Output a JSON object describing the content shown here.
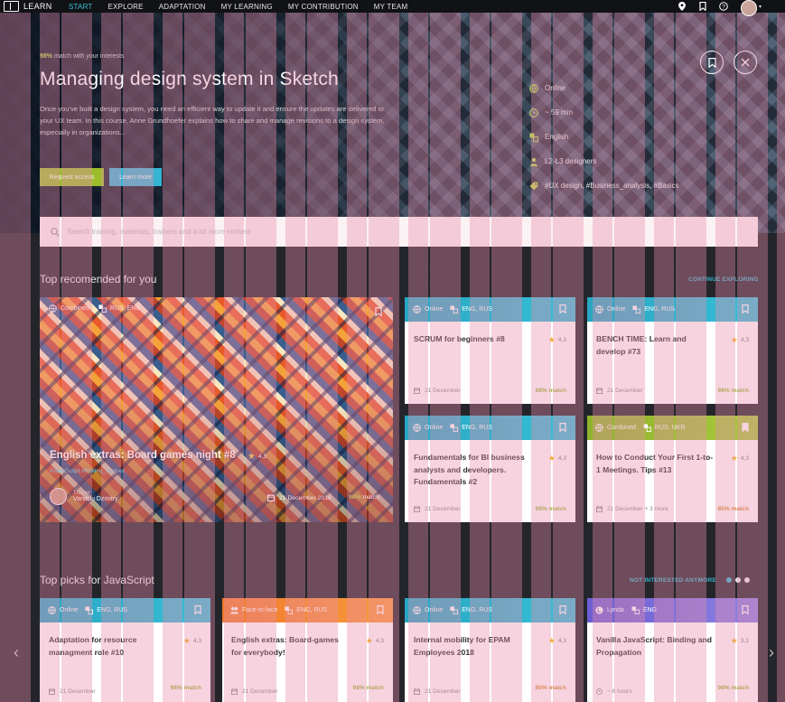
{
  "nav": {
    "logo_text": "LEARN",
    "items": [
      "START",
      "EXPLORE",
      "ADAPTATION",
      "MY LEARNING",
      "MY CONTRIBUTION",
      "MY TEAM"
    ],
    "active_index": 0
  },
  "hero": {
    "match_percent": "98%",
    "match_text": "match with your interests",
    "title": "Managing design system in Sketch",
    "description": "Once you've built a design system, you need an efficient way to update it and ensure the updates are delivered to your UX team. In this course, Anne Grundhoefer explains how to share and manage revisions to a design system, especially in organizations...",
    "request_label": "Request access",
    "learn_label": "Learn more",
    "meta": {
      "format": "Online",
      "duration": "~ 59 min",
      "language": "English",
      "level": "L2-L3 designers",
      "tags": "#UX design, #Business_analysis, #Basics"
    }
  },
  "search": {
    "placeholder": "Search training, materials, trainers and a lot more content"
  },
  "section1": {
    "title": "Top recomended for you",
    "link": "CONTINUE EXPLORING",
    "big_card": {
      "format": "Combined",
      "languages": "RUS, ENG",
      "title": "English extras: Board games night #8",
      "rating": "4,3",
      "tags": "#JavaScript #Rolling_Scopes",
      "trainer_label": "Trainer",
      "trainer_name": "Vanitski Dzmitry",
      "date": "21 December 2018",
      "match_value": "98%",
      "match_word": "match"
    },
    "cards": [
      {
        "format": "Online",
        "languages": "ENG, RUS",
        "title": "SCRUM for beginners #8",
        "rating": "4,3",
        "date": "21 December",
        "match": "98% match",
        "color": "cyan"
      },
      {
        "format": "Online",
        "languages": "ENG, RUS",
        "title": "BENCH TIME: Learn and develop #73",
        "rating": "4,3",
        "date": "21 December",
        "match": "98% match",
        "color": "cyan"
      },
      {
        "format": "Online",
        "languages": "ENG, RUS",
        "title": "Fundamentals for BI business analysts and developers. Fundamentals #2",
        "rating": "4,3",
        "date": "21 December",
        "match": "98% match",
        "color": "cyan"
      },
      {
        "format": "Combined",
        "languages": "RUS, UKR",
        "title": "How to Conduct Your First 1-to-1 Meetings. Tips #13",
        "rating": "4,3",
        "date": "21 December",
        "date_extra": "+ 3 more",
        "match": "85% match",
        "color": "green"
      }
    ]
  },
  "section2": {
    "title": "Top picks for JavaScript",
    "link": "NOT INTERESTED ANYMORE",
    "cards": [
      {
        "format": "Online",
        "languages": "ENG, RUS",
        "title": "Adaptation for resource managment role #10",
        "rating": "4,3",
        "date": "21 December",
        "match": "98% match",
        "color": "cyan"
      },
      {
        "format": "Face-to-face",
        "languages": "ENG, RUS",
        "title": "English extras: Board-games for everybody!",
        "rating": "4,3",
        "date": "21 December",
        "match": "98% match",
        "color": "orange"
      },
      {
        "format": "Online",
        "languages": "ENG, RUS",
        "title": "Internal mobility for EPAM Employees 2018",
        "rating": "4,3",
        "date": "21 December",
        "match": "85% match",
        "color": "cyan"
      },
      {
        "format": "Lynda",
        "languages": "ENG",
        "title": "Vanilla JavaScript: Binding and Propagation",
        "rating": "3,1",
        "date": "~ 6 hours",
        "match": "98% match",
        "color": "purple"
      }
    ]
  },
  "colors": {
    "accent": "#36b3cf",
    "green": "#9bbc2b",
    "orange": "#f07a2c",
    "purple": "#6c5ed1"
  }
}
